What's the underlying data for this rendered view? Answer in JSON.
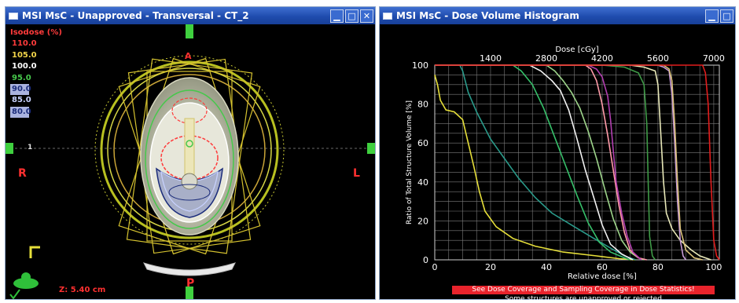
{
  "left_window": {
    "title": "MSI MsC  -  Unapproved - Transversal - CT_2",
    "controls": [
      "minimize",
      "maximize",
      "close"
    ],
    "isodose": {
      "header": "Isodose (%)",
      "levels": [
        {
          "label": "110.0",
          "color": "#ff3b3b"
        },
        {
          "label": "105.0",
          "color": "#f2d54a"
        },
        {
          "label": "100.0",
          "color": "#ffffff"
        },
        {
          "label": "95.0",
          "color": "#46c84b"
        },
        {
          "label": "90.0",
          "color": "#1b2c7a",
          "boxed": true
        },
        {
          "label": "85.0",
          "color": "#c8d2ff"
        },
        {
          "label": "80.0",
          "color": "#1b2c7a",
          "boxed": true
        }
      ]
    },
    "orientation": {
      "right": "R",
      "left": "L",
      "anterior": "A",
      "posterior": "P"
    },
    "z_readout": "Z: 5.40 cm",
    "crosshair_value": "1"
  },
  "right_window": {
    "title": "MSI MsC - Dose Volume Histogram",
    "controls": [
      "minimize",
      "maximize"
    ],
    "warning": "See Dose Coverage and Sampling Coverage in Dose Statistics!",
    "note": "Some structures are unapproved or rejected"
  },
  "chart_data": {
    "type": "line",
    "title": "",
    "xlabel": "Relative dose [%]",
    "ylabel": "Ratio of Total Structure Volume [%]",
    "top_axis_label": "Dose [cGy]",
    "xlim": [
      0,
      102
    ],
    "ylim": [
      0,
      100
    ],
    "x_ticks": [
      0,
      20,
      40,
      60,
      80,
      100
    ],
    "y_ticks": [
      0,
      20,
      40,
      60,
      80,
      100
    ],
    "top_ticks": [
      1400,
      2800,
      4200,
      5600,
      7000
    ],
    "top_ticks_relative": [
      20,
      40,
      60,
      80,
      100
    ],
    "grid": true,
    "series": [
      {
        "color": "#e6df3a",
        "points": [
          [
            0,
            95
          ],
          [
            1,
            90
          ],
          [
            2,
            82
          ],
          [
            4,
            77
          ],
          [
            7,
            76
          ],
          [
            10,
            72
          ],
          [
            12,
            60
          ],
          [
            14,
            48
          ],
          [
            16,
            35
          ],
          [
            18,
            25
          ],
          [
            22,
            17
          ],
          [
            28,
            11
          ],
          [
            36,
            7
          ],
          [
            46,
            4
          ],
          [
            58,
            2
          ],
          [
            66,
            0.6
          ],
          [
            72,
            0
          ]
        ]
      },
      {
        "color": "#2a9a8a",
        "points": [
          [
            0,
            100
          ],
          [
            9,
            100
          ],
          [
            10,
            97
          ],
          [
            12,
            86
          ],
          [
            15,
            76
          ],
          [
            20,
            62
          ],
          [
            25,
            52
          ],
          [
            30,
            42
          ],
          [
            36,
            32
          ],
          [
            42,
            24
          ],
          [
            50,
            17
          ],
          [
            57,
            11
          ],
          [
            63,
            6
          ],
          [
            68,
            2
          ],
          [
            72,
            0
          ]
        ]
      },
      {
        "color": "#36c06a",
        "points": [
          [
            0,
            100
          ],
          [
            28,
            100
          ],
          [
            31,
            97
          ],
          [
            35,
            90
          ],
          [
            39,
            78
          ],
          [
            43,
            63
          ],
          [
            47,
            48
          ],
          [
            51,
            33
          ],
          [
            55,
            19
          ],
          [
            59,
            9
          ],
          [
            63,
            4
          ],
          [
            68,
            1
          ],
          [
            70,
            0
          ]
        ]
      },
      {
        "color": "#f2f2f2",
        "points": [
          [
            0,
            100
          ],
          [
            34,
            100
          ],
          [
            38,
            97
          ],
          [
            42,
            92
          ],
          [
            45,
            87
          ],
          [
            48,
            77
          ],
          [
            51,
            62
          ],
          [
            54,
            46
          ],
          [
            57,
            32
          ],
          [
            60,
            18
          ],
          [
            63,
            8
          ],
          [
            67,
            3
          ],
          [
            71,
            0
          ]
        ]
      },
      {
        "color": "#9dd48a",
        "points": [
          [
            0,
            100
          ],
          [
            40,
            100
          ],
          [
            43,
            97
          ],
          [
            46,
            92
          ],
          [
            49,
            86
          ],
          [
            52,
            78
          ],
          [
            55,
            66
          ],
          [
            58,
            52
          ],
          [
            61,
            36
          ],
          [
            64,
            21
          ],
          [
            67,
            10
          ],
          [
            70,
            4
          ],
          [
            73,
            1
          ],
          [
            75,
            0
          ]
        ]
      },
      {
        "color": "#ff9aa8",
        "points": [
          [
            0,
            100
          ],
          [
            54,
            100
          ],
          [
            56,
            98
          ],
          [
            58,
            92
          ],
          [
            60,
            80
          ],
          [
            62,
            64
          ],
          [
            64,
            46
          ],
          [
            66,
            28
          ],
          [
            68,
            14
          ],
          [
            70,
            5
          ],
          [
            73,
            1
          ],
          [
            76,
            0
          ]
        ]
      },
      {
        "color": "#b23fb0",
        "points": [
          [
            0,
            100
          ],
          [
            55,
            100
          ],
          [
            58,
            98
          ],
          [
            60,
            94
          ],
          [
            62,
            84
          ],
          [
            63,
            72
          ],
          [
            64,
            56
          ],
          [
            65,
            40
          ],
          [
            67,
            24
          ],
          [
            69,
            12
          ],
          [
            71,
            4
          ],
          [
            74,
            0
          ]
        ]
      },
      {
        "color": "#3f9a47",
        "points": [
          [
            0,
            100
          ],
          [
            60,
            100
          ],
          [
            68,
            99
          ],
          [
            73,
            96
          ],
          [
            75,
            90
          ],
          [
            76,
            70
          ],
          [
            76.5,
            40
          ],
          [
            77,
            12
          ],
          [
            78,
            2
          ],
          [
            79,
            0
          ]
        ]
      },
      {
        "color": "#e8e8b8",
        "points": [
          [
            0,
            100
          ],
          [
            70,
            100
          ],
          [
            75,
            99
          ],
          [
            79,
            97
          ],
          [
            80,
            90
          ],
          [
            81,
            65
          ],
          [
            82,
            40
          ],
          [
            83,
            24
          ],
          [
            85,
            16
          ],
          [
            88,
            10
          ],
          [
            92,
            5
          ],
          [
            95,
            2
          ],
          [
            99,
            0
          ]
        ]
      },
      {
        "color": "#c79bd8",
        "points": [
          [
            0,
            100
          ],
          [
            80,
            100
          ],
          [
            82,
            99
          ],
          [
            84,
            97
          ],
          [
            85,
            85
          ],
          [
            86,
            60
          ],
          [
            87,
            30
          ],
          [
            88,
            10
          ],
          [
            89,
            2
          ],
          [
            90,
            0
          ]
        ]
      },
      {
        "color": "#d8c078",
        "points": [
          [
            0,
            100
          ],
          [
            82,
            100
          ],
          [
            84,
            98
          ],
          [
            85,
            92
          ],
          [
            86,
            70
          ],
          [
            87,
            40
          ],
          [
            88,
            16
          ],
          [
            90,
            5
          ],
          [
            93,
            1
          ],
          [
            96,
            0
          ]
        ]
      },
      {
        "color": "#e21d1d",
        "points": [
          [
            0,
            100
          ],
          [
            96,
            100
          ],
          [
            97,
            96
          ],
          [
            98,
            80
          ],
          [
            99,
            40
          ],
          [
            100,
            10
          ],
          [
            101,
            2
          ],
          [
            102,
            0
          ]
        ]
      }
    ]
  }
}
